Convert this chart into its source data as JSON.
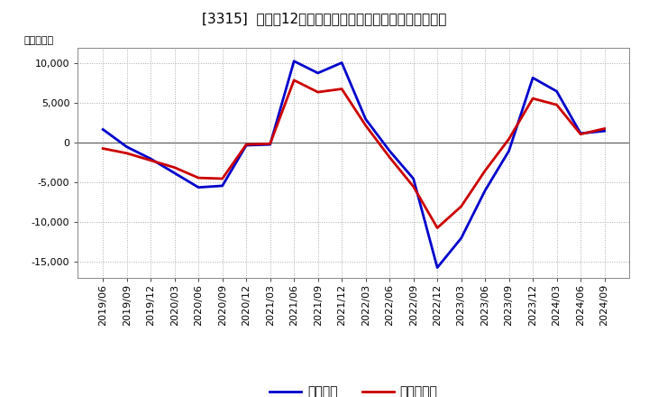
{
  "title": "[3315]  利益だ12か月移動合計の対前年同期増減額の推移",
  "ylabel": "（百万円）",
  "background_color": "#ffffff",
  "plot_bg_color": "#f0f0f0",
  "grid_color": "#aaaaaa",
  "zero_line_color": "#555555",
  "x_labels": [
    "2019/06",
    "2019/09",
    "2019/12",
    "2020/03",
    "2020/06",
    "2020/09",
    "2020/12",
    "2021/03",
    "2021/06",
    "2021/09",
    "2021/12",
    "2022/03",
    "2022/06",
    "2022/09",
    "2022/12",
    "2023/03",
    "2023/06",
    "2023/09",
    "2023/12",
    "2024/03",
    "2024/06",
    "2024/09"
  ],
  "keijo_rieki": [
    1700,
    -500,
    -2000,
    -3800,
    -5600,
    -5400,
    -300,
    -200,
    10300,
    8800,
    10100,
    3000,
    -1000,
    -4500,
    -15700,
    -12000,
    -6000,
    -1000,
    8200,
    6500,
    1200,
    1500
  ],
  "touki_jun_rieki": [
    -700,
    -1300,
    -2200,
    -3100,
    -4400,
    -4500,
    -200,
    -100,
    7900,
    6400,
    6800,
    2200,
    -1800,
    -5500,
    -10700,
    -8000,
    -3500,
    500,
    5600,
    4800,
    1100,
    1800
  ],
  "keijo_color": "#0000cc",
  "touki_color": "#cc0000",
  "ylim": [
    -17000,
    12000
  ],
  "yticks": [
    -15000,
    -10000,
    -5000,
    0,
    5000,
    10000
  ],
  "line_width": 2.0,
  "legend_keijo": "経常利益",
  "legend_touki": "当期純利益",
  "title_fontsize": 11,
  "axis_fontsize": 8,
  "legend_fontsize": 10
}
